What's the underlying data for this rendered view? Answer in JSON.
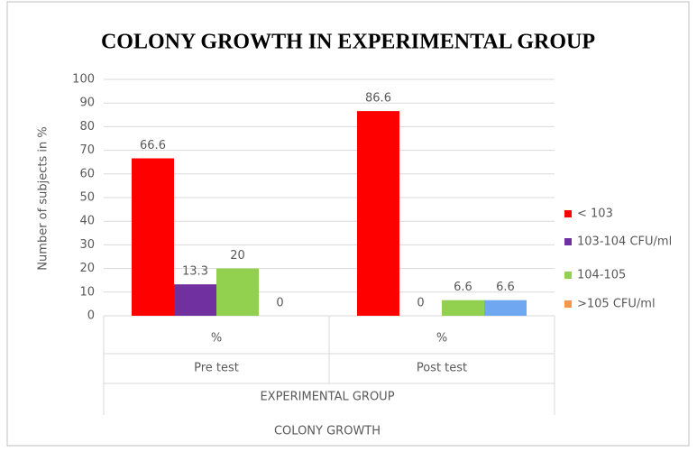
{
  "chart_data": {
    "type": "bar",
    "title": "COLONY GROWTH IN EXPERIMENTAL GROUP",
    "categories": [
      "Pre test",
      "Post test"
    ],
    "category_sublabels": [
      "%",
      "%"
    ],
    "x_group_label": "EXPERIMENTAL GROUP",
    "xlabel": "COLONY GROWTH",
    "ylabel": "Number of subjects in %",
    "ylim": [
      0,
      100
    ],
    "yticks": [
      0,
      10,
      20,
      30,
      40,
      50,
      60,
      70,
      80,
      90,
      100
    ],
    "grid": true,
    "legend": "right",
    "series": [
      {
        "name": "< 103",
        "color": "#ff0000",
        "values": [
          66.6,
          86.6
        ]
      },
      {
        "name": "103-104 CFU/ml",
        "color": "#7030a0",
        "values": [
          13.3,
          0
        ]
      },
      {
        "name": "104-105",
        "color": "#92d050",
        "values": [
          20,
          6.6
        ]
      },
      {
        "name": ">105 CFU/ml",
        "color": "#f79646",
        "point_colors": [
          "#f79646",
          "#6fa8f0"
        ],
        "values": [
          0,
          6.6
        ]
      }
    ]
  }
}
